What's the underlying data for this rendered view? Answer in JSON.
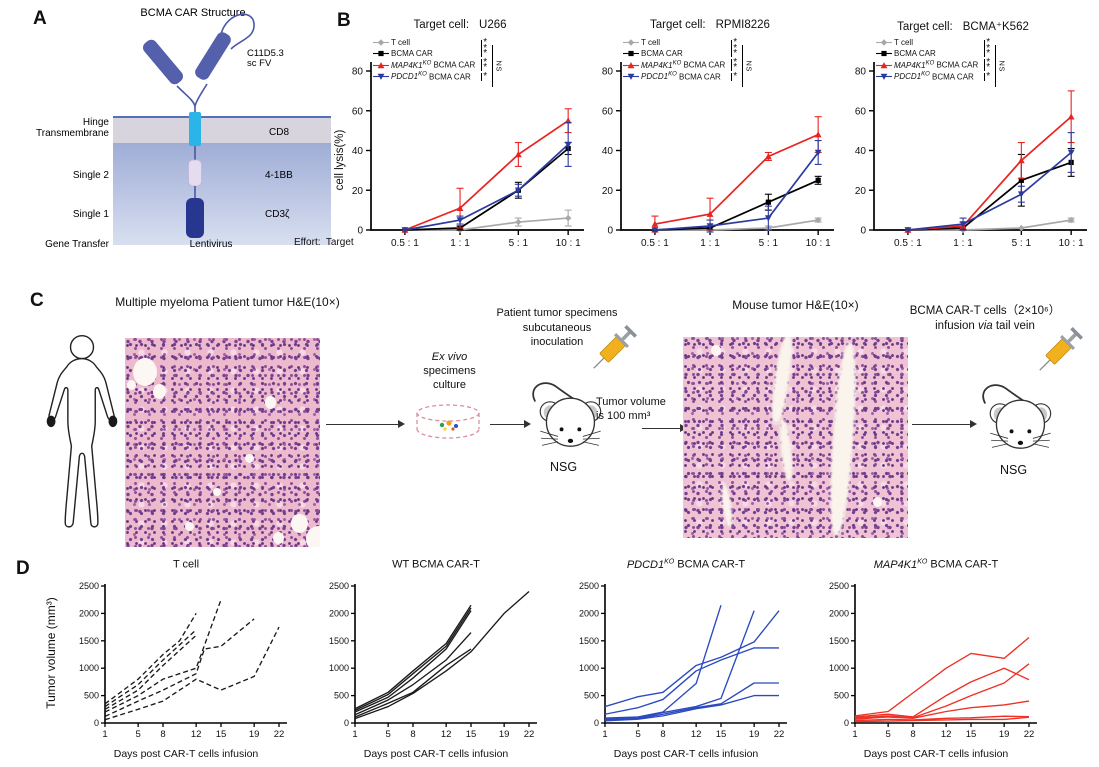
{
  "figure": {
    "panel_a": "A",
    "panel_b": "B",
    "panel_c": "C",
    "panel_d": "D"
  },
  "panelA": {
    "title": "BCMA CAR Structure",
    "scfv_line1": "C11D5.3",
    "scfv_line2": "sc FV",
    "hinge": "Hinge",
    "transmembrane": "Transmembrane",
    "single2": "Single 2",
    "single1": "Single 1",
    "gene_transfer": "Gene Transfer",
    "cd8": "CD8",
    "costim": "4-1BB",
    "cd3zeta": "CD3ζ",
    "lentivirus": "Lentivirus",
    "colors": {
      "arm": "#5560ac",
      "tm_segment": "#2ab4e8",
      "costim_segment": "#e6dcf0",
      "cd3z_segment": "#27378f",
      "membrane_band": "#d8d4de"
    }
  },
  "panelB": {
    "ylabel": "cell lysis(%)",
    "effort_label": "Effort:  Target",
    "sig": [
      "***",
      "**",
      "*",
      "NS"
    ]
  },
  "panelC": {
    "title_left": "Multiple myeloma  Patient tumor H&E(10×)",
    "ex_vivo": [
      "Ex vivo",
      "specimens",
      "culture"
    ],
    "inoculation": [
      "Patient tumor specimens",
      "subcutaneous",
      "inoculation"
    ],
    "tumor_volume": [
      "Tumor volume",
      "is 100 mm³"
    ],
    "nsg_left": "NSG",
    "title_right": "Mouse tumor H&E(10×)",
    "cart_cells": "BCMA CAR-T cells（2×10⁶）",
    "infusion_pre": "infusion ",
    "infusion_italic": "via",
    "infusion_post": " tail vein",
    "nsg_right": "NSG"
  },
  "panelD": {
    "ylabel": "Tumor volume (mm³)"
  },
  "chart_data": [
    {
      "id": "b-u266",
      "type": "line",
      "title_prefix": "Target cell:",
      "title_value": "U266",
      "categories": [
        "0.5 : 1",
        "1 : 1",
        "5 : 1",
        "10 : 1"
      ],
      "ylabel": "cell lysis(%)",
      "ylim": [
        0,
        80
      ],
      "yticks": [
        0,
        20,
        40,
        60,
        80
      ],
      "legend_position": "top-left",
      "series": [
        {
          "name": "T cell",
          "label_parts": [
            "",
            "",
            "T cell"
          ],
          "color": "#a8a8aa",
          "marker": "diamond",
          "values": [
            0,
            0,
            4,
            6
          ],
          "errors": [
            0.5,
            0.5,
            2,
            4
          ]
        },
        {
          "name": "BCMA CAR",
          "label_parts": [
            "",
            "",
            "BCMA CAR"
          ],
          "color": "#000000",
          "marker": "square",
          "values": [
            0,
            1,
            20,
            41
          ],
          "errors": [
            0.5,
            1,
            4,
            3
          ]
        },
        {
          "name": "MAP4K1-KO BCMA CAR",
          "label_parts": [
            "MAP4K1",
            "KO",
            " BCMA CAR"
          ],
          "color": "#e82420",
          "marker": "triangle-up",
          "values": [
            0,
            11,
            38,
            55
          ],
          "errors": [
            0.5,
            10,
            6,
            6
          ]
        },
        {
          "name": "PDCD1-KO BCMA CAR",
          "label_parts": [
            "PDCD1",
            "KO",
            " BCMA CAR"
          ],
          "color": "#2b3a9f",
          "marker": "triangle-down",
          "values": [
            0,
            5,
            20,
            43
          ],
          "errors": [
            0.5,
            2,
            3,
            11
          ]
        }
      ],
      "significance": [
        "***",
        "**",
        "*",
        "NS"
      ]
    },
    {
      "id": "b-rpmi8226",
      "type": "line",
      "title_prefix": "Target cell:",
      "title_value": "RPMI8226",
      "categories": [
        "0.5 : 1",
        "1 : 1",
        "5 : 1",
        "10 : 1"
      ],
      "ylabel": "cell lysis(%)",
      "ylim": [
        0,
        80
      ],
      "yticks": [
        0,
        20,
        40,
        60,
        80
      ],
      "legend_position": "top-left",
      "series": [
        {
          "name": "T cell",
          "label_parts": [
            "",
            "",
            "T cell"
          ],
          "color": "#a8a8aa",
          "marker": "diamond",
          "values": [
            0,
            0,
            1,
            5
          ],
          "errors": [
            0.5,
            0.5,
            1,
            1
          ]
        },
        {
          "name": "BCMA CAR",
          "label_parts": [
            "",
            "",
            "BCMA CAR"
          ],
          "color": "#000000",
          "marker": "square",
          "values": [
            0,
            1,
            14,
            25
          ],
          "errors": [
            0.5,
            1,
            4,
            2
          ]
        },
        {
          "name": "MAP4K1-KO BCMA CAR",
          "label_parts": [
            "MAP4K1",
            "KO",
            " BCMA CAR"
          ],
          "color": "#e82420",
          "marker": "triangle-up",
          "values": [
            3,
            8,
            37,
            48
          ],
          "errors": [
            4,
            8,
            2,
            9
          ]
        },
        {
          "name": "PDCD1-KO BCMA CAR",
          "label_parts": [
            "PDCD1",
            "KO",
            " BCMA CAR"
          ],
          "color": "#2b3a9f",
          "marker": "triangle-down",
          "values": [
            0,
            2,
            6,
            39
          ],
          "errors": [
            0.5,
            3,
            6,
            6
          ]
        }
      ],
      "significance": [
        "***",
        "**",
        "*",
        "NS"
      ]
    },
    {
      "id": "b-k562",
      "type": "line",
      "title_prefix": "Target cell:",
      "title_value": "BCMA⁺K562",
      "categories": [
        "0.5 : 1",
        "1 : 1",
        "5 : 1",
        "10 : 1"
      ],
      "ylabel": "cell lysis(%)",
      "ylim": [
        0,
        80
      ],
      "yticks": [
        0,
        20,
        40,
        60,
        80
      ],
      "legend_position": "top-left",
      "series": [
        {
          "name": "T cell",
          "label_parts": [
            "",
            "",
            "T cell"
          ],
          "color": "#a8a8aa",
          "marker": "diamond",
          "values": [
            0,
            0,
            1,
            5
          ],
          "errors": [
            0.3,
            0.3,
            0.5,
            1
          ]
        },
        {
          "name": "BCMA CAR",
          "label_parts": [
            "",
            "",
            "BCMA CAR"
          ],
          "color": "#000000",
          "marker": "square",
          "values": [
            0,
            1,
            25,
            34
          ],
          "errors": [
            0.5,
            1,
            13,
            7
          ]
        },
        {
          "name": "MAP4K1-KO BCMA CAR",
          "label_parts": [
            "MAP4K1",
            "KO",
            " BCMA CAR"
          ],
          "color": "#e82420",
          "marker": "triangle-up",
          "values": [
            0,
            2,
            35,
            57
          ],
          "errors": [
            0.5,
            2,
            9,
            13
          ]
        },
        {
          "name": "PDCD1-KO BCMA CAR",
          "label_parts": [
            "PDCD1",
            "KO",
            " BCMA CAR"
          ],
          "color": "#2b3a9f",
          "marker": "triangle-down",
          "values": [
            0,
            3,
            18,
            39
          ],
          "errors": [
            0.5,
            3,
            4,
            10
          ]
        }
      ],
      "significance": [
        "***",
        "**",
        "*",
        "NS"
      ]
    },
    {
      "id": "d-tcell",
      "type": "line",
      "title": {
        "italic": "",
        "sup": "",
        "rest": "T cell"
      },
      "xlabel": "Days post CAR-T cells infusion",
      "ylabel": "Tumor volume (mm³)",
      "color": "#1a1a1a",
      "dash": true,
      "xlim": [
        1,
        22
      ],
      "xticks": [
        1,
        5,
        8,
        12,
        15,
        19,
        22
      ],
      "ylim": [
        0,
        2500
      ],
      "yticks": [
        0,
        500,
        1000,
        1500,
        2000,
        2500
      ],
      "lines": [
        [
          [
            1,
            350
          ],
          [
            5,
            800
          ],
          [
            8,
            1250
          ],
          [
            10,
            1500
          ],
          [
            12,
            2000
          ]
        ],
        [
          [
            1,
            300
          ],
          [
            5,
            700
          ],
          [
            8,
            1150
          ],
          [
            12,
            1700
          ]
        ],
        [
          [
            1,
            250
          ],
          [
            5,
            600
          ],
          [
            8,
            1050
          ],
          [
            12,
            1600
          ]
        ],
        [
          [
            1,
            200
          ],
          [
            5,
            500
          ],
          [
            8,
            800
          ],
          [
            12,
            1000
          ],
          [
            15,
            2250
          ]
        ],
        [
          [
            1,
            120
          ],
          [
            5,
            400
          ],
          [
            8,
            600
          ],
          [
            12,
            900
          ],
          [
            13,
            1350
          ],
          [
            15,
            1400
          ],
          [
            19,
            1900
          ]
        ],
        [
          [
            1,
            60
          ],
          [
            5,
            250
          ],
          [
            8,
            400
          ],
          [
            12,
            800
          ],
          [
            15,
            600
          ],
          [
            19,
            850
          ],
          [
            22,
            1750
          ]
        ]
      ]
    },
    {
      "id": "d-wt",
      "type": "line",
      "title": {
        "italic": "",
        "sup": "",
        "rest": "WT BCMA CAR-T"
      },
      "xlabel": "Days post CAR-T cells infusion",
      "ylabel": "Tumor volume (mm³)",
      "color": "#1a1a1a",
      "dash": false,
      "xlim": [
        1,
        22
      ],
      "xticks": [
        1,
        5,
        8,
        12,
        15,
        19,
        22
      ],
      "ylim": [
        0,
        2500
      ],
      "yticks": [
        0,
        500,
        1000,
        1500,
        2000,
        2500
      ],
      "lines": [
        [
          [
            1,
            260
          ],
          [
            5,
            560
          ],
          [
            8,
            950
          ],
          [
            12,
            1450
          ],
          [
            15,
            2150
          ]
        ],
        [
          [
            1,
            230
          ],
          [
            5,
            520
          ],
          [
            8,
            900
          ],
          [
            12,
            1400
          ],
          [
            15,
            2100
          ]
        ],
        [
          [
            1,
            200
          ],
          [
            5,
            470
          ],
          [
            8,
            820
          ],
          [
            12,
            1350
          ],
          [
            15,
            2050
          ]
        ],
        [
          [
            1,
            150
          ],
          [
            5,
            420
          ],
          [
            8,
            700
          ],
          [
            12,
            1150
          ],
          [
            15,
            1650
          ]
        ],
        [
          [
            1,
            110
          ],
          [
            5,
            360
          ],
          [
            8,
            560
          ],
          [
            12,
            1050
          ],
          [
            15,
            1350
          ]
        ],
        [
          [
            1,
            80
          ],
          [
            5,
            300
          ],
          [
            8,
            540
          ],
          [
            12,
            950
          ],
          [
            15,
            1300
          ],
          [
            19,
            2000
          ],
          [
            22,
            2400
          ]
        ]
      ]
    },
    {
      "id": "d-pdcd1",
      "type": "line",
      "title": {
        "italic": "PDCD1",
        "sup": "KO",
        "rest": " BCMA CAR-T"
      },
      "xlabel": "Days post CAR-T cells infusion",
      "ylabel": "Tumor volume (mm³)",
      "color": "#2b4abf",
      "dash": false,
      "xlim": [
        1,
        22
      ],
      "xticks": [
        1,
        5,
        8,
        12,
        15,
        19,
        22
      ],
      "ylim": [
        0,
        2500
      ],
      "yticks": [
        0,
        500,
        1000,
        1500,
        2000,
        2500
      ],
      "lines": [
        [
          [
            1,
            300
          ],
          [
            5,
            480
          ],
          [
            8,
            560
          ],
          [
            12,
            1050
          ],
          [
            15,
            1200
          ],
          [
            19,
            1480
          ],
          [
            22,
            2050
          ]
        ],
        [
          [
            1,
            160
          ],
          [
            5,
            280
          ],
          [
            8,
            430
          ],
          [
            12,
            950
          ],
          [
            15,
            1150
          ],
          [
            19,
            1370
          ],
          [
            22,
            1370
          ]
        ],
        [
          [
            1,
            90
          ],
          [
            5,
            110
          ],
          [
            8,
            200
          ],
          [
            12,
            720
          ],
          [
            15,
            2150
          ]
        ],
        [
          [
            1,
            70
          ],
          [
            5,
            95
          ],
          [
            8,
            190
          ],
          [
            12,
            300
          ],
          [
            15,
            450
          ],
          [
            19,
            2050
          ]
        ],
        [
          [
            1,
            50
          ],
          [
            5,
            85
          ],
          [
            8,
            160
          ],
          [
            12,
            280
          ],
          [
            15,
            350
          ],
          [
            19,
            730
          ],
          [
            22,
            730
          ]
        ],
        [
          [
            1,
            40
          ],
          [
            5,
            70
          ],
          [
            8,
            130
          ],
          [
            12,
            260
          ],
          [
            15,
            330
          ],
          [
            19,
            500
          ],
          [
            22,
            500
          ]
        ]
      ]
    },
    {
      "id": "d-map4k1",
      "type": "line",
      "title": {
        "italic": "MAP4K1",
        "sup": "KO",
        "rest": " BCMA CAR-T"
      },
      "xlabel": "Days post CAR-T cells infusion",
      "ylabel": "Tumor volume (mm³)",
      "color": "#ee3124",
      "dash": false,
      "xlim": [
        1,
        22
      ],
      "xticks": [
        1,
        5,
        8,
        12,
        15,
        19,
        22
      ],
      "ylim": [
        0,
        2500
      ],
      "yticks": [
        0,
        500,
        1000,
        1500,
        2000,
        2500
      ],
      "lines": [
        [
          [
            1,
            130
          ],
          [
            5,
            210
          ],
          [
            8,
            550
          ],
          [
            12,
            1000
          ],
          [
            15,
            1270
          ],
          [
            19,
            1180
          ],
          [
            22,
            1560
          ]
        ],
        [
          [
            1,
            110
          ],
          [
            5,
            160
          ],
          [
            8,
            110
          ],
          [
            12,
            500
          ],
          [
            15,
            750
          ],
          [
            19,
            1000
          ],
          [
            22,
            790
          ]
        ],
        [
          [
            1,
            90
          ],
          [
            5,
            130
          ],
          [
            8,
            95
          ],
          [
            12,
            310
          ],
          [
            15,
            500
          ],
          [
            19,
            730
          ],
          [
            22,
            1080
          ]
        ],
        [
          [
            1,
            70
          ],
          [
            5,
            110
          ],
          [
            8,
            85
          ],
          [
            12,
            210
          ],
          [
            15,
            280
          ],
          [
            19,
            330
          ],
          [
            22,
            400
          ]
        ],
        [
          [
            1,
            45
          ],
          [
            5,
            65
          ],
          [
            8,
            55
          ],
          [
            12,
            85
          ],
          [
            15,
            95
          ],
          [
            19,
            125
          ],
          [
            22,
            115
          ]
        ],
        [
          [
            1,
            25
          ],
          [
            5,
            35
          ],
          [
            8,
            45
          ],
          [
            12,
            55
          ],
          [
            15,
            65
          ],
          [
            19,
            65
          ],
          [
            22,
            105
          ]
        ]
      ]
    }
  ]
}
